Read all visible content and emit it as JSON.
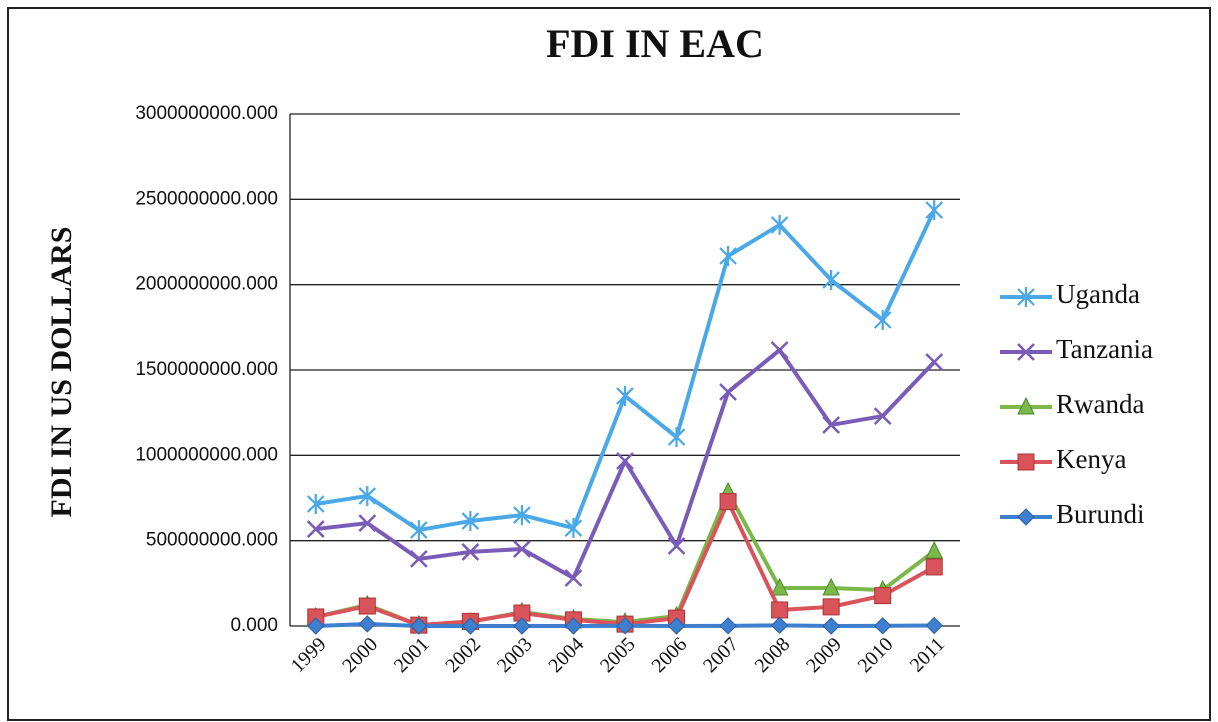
{
  "chart_data": {
    "type": "line",
    "title": "FDI IN EAC",
    "y_label": "FDI IN US DOLLARS",
    "categories": [
      "1999",
      "2000",
      "2001",
      "2002",
      "2003",
      "2004",
      "2005",
      "2006",
      "2007",
      "2008",
      "2009",
      "2010",
      "2011"
    ],
    "series": [
      {
        "name": "Uganda",
        "color": "#4aa8e8",
        "marker": "asterisk",
        "values": [
          715000000,
          762000000,
          562000000,
          615000000,
          650000000,
          574000000,
          1348000000,
          1107000000,
          2168000000,
          2350000000,
          2027000000,
          1793000000,
          2437000000
        ]
      },
      {
        "name": "Tanzania",
        "color": "#7a5cb8",
        "marker": "x",
        "values": [
          568000000,
          603000000,
          393000000,
          434000000,
          451000000,
          281000000,
          967000000,
          469000000,
          1371000000,
          1617000000,
          1178000000,
          1230000000,
          1547000000
        ]
      },
      {
        "name": "Rwanda",
        "color": "#7ab84a",
        "marker": "triangle",
        "values": [
          53000000,
          123000000,
          6000000,
          23000000,
          82000000,
          41000000,
          23000000,
          59000000,
          785000000,
          223000000,
          223000000,
          211000000,
          439000000
        ]
      },
      {
        "name": "Kenya",
        "color": "#d9545a",
        "marker": "square",
        "values": [
          53000000,
          117000000,
          5000000,
          27000000,
          76000000,
          36000000,
          11000000,
          46000000,
          729000000,
          94000000,
          112000000,
          178000000,
          346000000
        ]
      },
      {
        "name": "Burundi",
        "color": "#3f7fd0",
        "marker": "diamond",
        "values": [
          0,
          12000000,
          0,
          0,
          0,
          0,
          1000000,
          0,
          1000000,
          4000000,
          0,
          1000000,
          3000000
        ]
      }
    ],
    "ylim": [
      0,
      3000000000
    ],
    "yticks": [
      {
        "value": 0,
        "label": "0.000"
      },
      {
        "value": 500000000,
        "label": "500000000.000"
      },
      {
        "value": 1000000000,
        "label": "1000000000.000"
      },
      {
        "value": 1500000000,
        "label": "1500000000.000"
      },
      {
        "value": 2000000000,
        "label": "2000000000.000"
      },
      {
        "value": 2500000000,
        "label": "2500000000.000"
      },
      {
        "value": 3000000000,
        "label": "3000000000.000"
      }
    ],
    "grid": true,
    "legend": "right"
  }
}
